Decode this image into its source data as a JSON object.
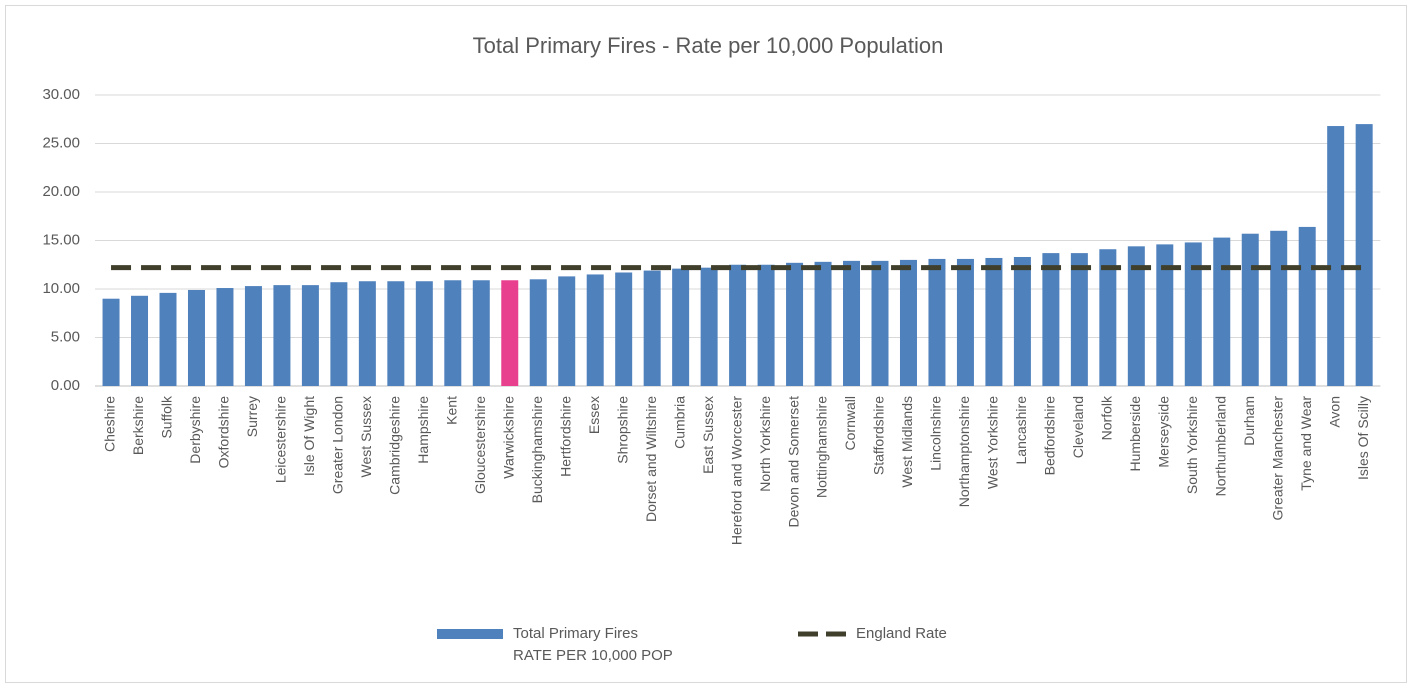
{
  "chart_data": {
    "type": "bar",
    "title": "Total Primary Fires - Rate per 10,000 Population",
    "categories": [
      "Cheshire",
      "Berkshire",
      "Suffolk",
      "Derbyshire",
      "Oxfordshire",
      "Surrey",
      "Leicestershire",
      "Isle Of Wight",
      "Greater London",
      "West Sussex",
      "Cambridgeshire",
      "Hampshire",
      "Kent",
      "Gloucestershire",
      "Warwickshire",
      "Buckinghamshire",
      "Hertfordshire",
      "Essex",
      "Shropshire",
      "Dorset and Wiltshire",
      "Cumbria",
      "East Sussex",
      "Hereford and Worcester",
      "North Yorkshire",
      "Devon and Somerset",
      "Nottinghamshire",
      "Cornwall",
      "Staffordshire",
      "West Midlands",
      "Lincolnshire",
      "Northamptonshire",
      "West Yorkshire",
      "Lancashire",
      "Bedfordshire",
      "Cleveland",
      "Norfolk",
      "Humberside",
      "Merseyside",
      "South Yorkshire",
      "Northumberland",
      "Durham",
      "Greater Manchester",
      "Tyne and Wear",
      "Avon",
      "Isles Of Scilly"
    ],
    "series": [
      {
        "name": "Total Primary Fires\nRATE PER 10,000 POP",
        "type": "bar",
        "color": "#4f81bd",
        "colors": [
          "#4f81bd",
          "#4f81bd",
          "#4f81bd",
          "#4f81bd",
          "#4f81bd",
          "#4f81bd",
          "#4f81bd",
          "#4f81bd",
          "#4f81bd",
          "#4f81bd",
          "#4f81bd",
          "#4f81bd",
          "#4f81bd",
          "#4f81bd",
          "#e8408f",
          "#4f81bd",
          "#4f81bd",
          "#4f81bd",
          "#4f81bd",
          "#4f81bd",
          "#4f81bd",
          "#4f81bd",
          "#4f81bd",
          "#4f81bd",
          "#4f81bd",
          "#4f81bd",
          "#4f81bd",
          "#4f81bd",
          "#4f81bd",
          "#4f81bd",
          "#4f81bd",
          "#4f81bd",
          "#4f81bd",
          "#4f81bd",
          "#4f81bd",
          "#4f81bd",
          "#4f81bd",
          "#4f81bd",
          "#4f81bd",
          "#4f81bd",
          "#4f81bd",
          "#4f81bd",
          "#4f81bd",
          "#4f81bd",
          "#4f81bd"
        ],
        "values": [
          9.0,
          9.3,
          9.6,
          9.9,
          10.1,
          10.3,
          10.4,
          10.4,
          10.7,
          10.8,
          10.8,
          10.8,
          10.9,
          10.9,
          10.9,
          11.0,
          11.3,
          11.5,
          11.7,
          11.9,
          12.1,
          12.2,
          12.5,
          12.5,
          12.7,
          12.8,
          12.9,
          12.9,
          13.0,
          13.1,
          13.1,
          13.2,
          13.3,
          13.7,
          13.7,
          14.1,
          14.4,
          14.6,
          14.8,
          15.3,
          15.7,
          16.0,
          16.4,
          26.8,
          27.0
        ]
      },
      {
        "name": "England Rate",
        "type": "line",
        "color": "#403f2b",
        "values": [
          12.2,
          12.2,
          12.2,
          12.2,
          12.2,
          12.2,
          12.2,
          12.2,
          12.2,
          12.2,
          12.2,
          12.2,
          12.2,
          12.2,
          12.2,
          12.2,
          12.2,
          12.2,
          12.2,
          12.2,
          12.2,
          12.2,
          12.2,
          12.2,
          12.2,
          12.2,
          12.2,
          12.2,
          12.2,
          12.2,
          12.2,
          12.2,
          12.2,
          12.2,
          12.2,
          12.2,
          12.2,
          12.2,
          12.2,
          12.2,
          12.2,
          12.2,
          12.2,
          12.2,
          12.2
        ]
      }
    ],
    "ylim": [
      0,
      30
    ],
    "yticks": [
      {
        "value": 0,
        "label": "0.00"
      },
      {
        "value": 5,
        "label": "5.00"
      },
      {
        "value": 10,
        "label": "10.00"
      },
      {
        "value": 15,
        "label": "15.00"
      },
      {
        "value": 20,
        "label": "20.00"
      },
      {
        "value": 25,
        "label": "25.00"
      },
      {
        "value": 30,
        "label": "30.00"
      }
    ],
    "grid": true,
    "legend": "bottom"
  }
}
